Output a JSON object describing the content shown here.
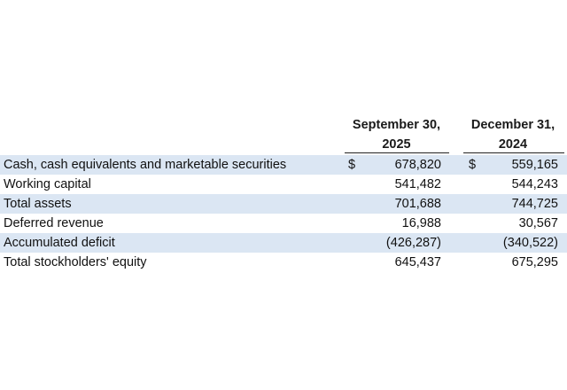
{
  "columns": [
    {
      "line1": "September 30,",
      "line2": "2025"
    },
    {
      "line1": "December 31,",
      "line2": "2024"
    }
  ],
  "rows": [
    {
      "label": "Cash, cash equivalents and marketable securities",
      "cur1": "$",
      "v1": "678,820",
      "cur2": "$",
      "v2": "559,165"
    },
    {
      "label": "Working capital",
      "cur1": "",
      "v1": "541,482",
      "cur2": "",
      "v2": "544,243"
    },
    {
      "label": "Total assets",
      "cur1": "",
      "v1": "701,688",
      "cur2": "",
      "v2": "744,725"
    },
    {
      "label": "Deferred revenue",
      "cur1": "",
      "v1": "16,988",
      "cur2": "",
      "v2": "30,567"
    },
    {
      "label": "Accumulated deficit",
      "cur1": "",
      "v1": "(426,287)",
      "cur2": "",
      "v2": "(340,522)"
    },
    {
      "label": "Total stockholders' equity",
      "cur1": "",
      "v1": "645,437",
      "cur2": "",
      "v2": "675,295"
    }
  ],
  "colors": {
    "row_shade": "#dbe6f3",
    "text": "#111111"
  }
}
